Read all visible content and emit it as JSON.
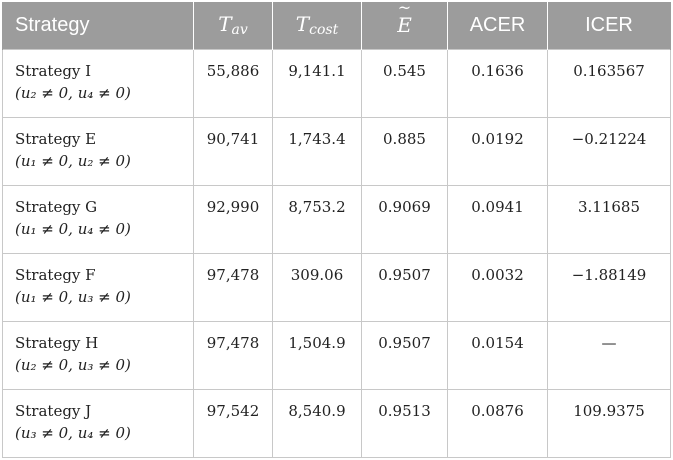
{
  "table": {
    "headers": {
      "strategy": "Strategy",
      "tav_base": "T",
      "tav_sub": "av",
      "tcost_base": "T",
      "tcost_sub": "cost",
      "e_base": "E",
      "e_accent": "~",
      "acer": "ACER",
      "icer": "ICER"
    },
    "rows": [
      {
        "strategy": "Strategy I",
        "condition": "(u₂ ≠ 0, u₄ ≠ 0)",
        "tav": "55,886",
        "tcost": "9,141.1",
        "e": "0.545",
        "acer": "0.1636",
        "icer": "0.163567"
      },
      {
        "strategy": "Strategy E",
        "condition": "(u₁ ≠ 0, u₂ ≠ 0)",
        "tav": "90,741",
        "tcost": "1,743.4",
        "e": "0.885",
        "acer": "0.0192",
        "icer": "−0.21224"
      },
      {
        "strategy": "Strategy G",
        "condition": "(u₁ ≠ 0, u₄ ≠ 0)",
        "tav": "92,990",
        "tcost": "8,753.2",
        "e": "0.9069",
        "acer": "0.0941",
        "icer": "3.11685"
      },
      {
        "strategy": "Strategy F",
        "condition": "(u₁ ≠ 0, u₃ ≠ 0)",
        "tav": "97,478",
        "tcost": "309.06",
        "e": "0.9507",
        "acer": "0.0032",
        "icer": "−1.88149"
      },
      {
        "strategy": "Strategy H",
        "condition": "(u₂ ≠ 0, u₃ ≠ 0)",
        "tav": "97,478",
        "tcost": "1,504.9",
        "e": "0.9507",
        "acer": "0.0154",
        "icer": "—"
      },
      {
        "strategy": "Strategy J",
        "condition": "(u₃ ≠ 0, u₄ ≠ 0)",
        "tav": "97,542",
        "tcost": "8,540.9",
        "e": "0.9513",
        "acer": "0.0876",
        "icer": "109.9375"
      }
    ]
  },
  "colors": {
    "header_bg": "#9c9c9c",
    "header_text": "#ffffff",
    "grid": "#c8c8c8",
    "body_text": "#222222"
  }
}
